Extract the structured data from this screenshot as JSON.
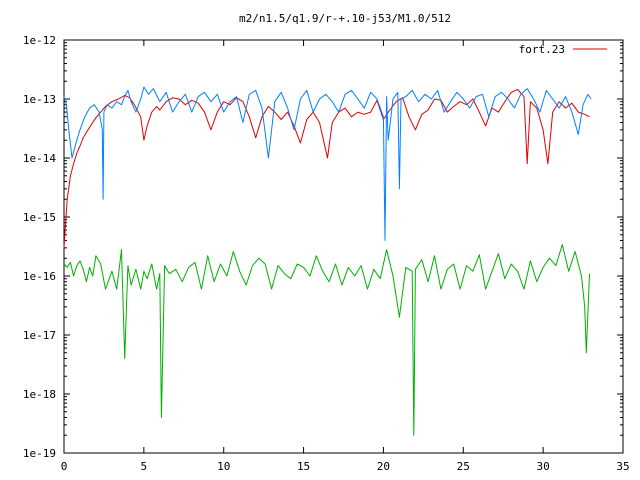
{
  "chart_data": {
    "type": "line",
    "title": "m2/n1.5/q1.9/r-+.10-j53/M1.0/512",
    "xlabel": "",
    "ylabel": "",
    "xlim": [
      0,
      35
    ],
    "ylim": [
      1e-19,
      1e-12
    ],
    "y_scale": "log",
    "grid": false,
    "legend_position": "top-right",
    "x_tick_labels": [
      "0",
      "5",
      "10",
      "15",
      "20",
      "25",
      "30",
      "35"
    ],
    "y_tick_labels": [
      "1e-19",
      "1e-18",
      "1e-17",
      "1e-16",
      "1e-15",
      "1e-14",
      "1e-13",
      "1e-12"
    ],
    "colors": {
      "red": "#e00000",
      "blue": "#0080ff",
      "green": "#00b000"
    },
    "series": [
      {
        "name": "fort.23",
        "color": "#e00000",
        "x": [
          0.0,
          0.2,
          0.4,
          0.6,
          0.8,
          1.0,
          1.2,
          1.5,
          1.8,
          2.0,
          2.3,
          2.6,
          3.0,
          3.4,
          3.8,
          4.1,
          4.4,
          4.8,
          5.0,
          5.2,
          5.5,
          5.8,
          6.0,
          6.4,
          6.8,
          7.2,
          7.6,
          8.0,
          8.4,
          8.8,
          9.2,
          9.6,
          10.0,
          10.4,
          10.8,
          11.2,
          11.6,
          12.0,
          12.4,
          12.8,
          13.2,
          13.6,
          14.0,
          14.4,
          14.8,
          15.2,
          15.6,
          16.0,
          16.5,
          16.8,
          17.2,
          17.6,
          18.0,
          18.4,
          18.8,
          19.2,
          19.6,
          20.0,
          20.4,
          20.8,
          21.2,
          21.6,
          22.0,
          22.4,
          22.8,
          23.2,
          23.6,
          24.0,
          24.4,
          24.8,
          25.2,
          25.6,
          26.0,
          26.4,
          26.8,
          27.2,
          27.6,
          28.0,
          28.4,
          28.8,
          29.0,
          29.2,
          29.6,
          30.0,
          30.3,
          30.6,
          31.0,
          31.4,
          31.8,
          32.2,
          32.6,
          32.9
        ],
        "y": [
          3e-16,
          2e-15,
          5e-15,
          8e-15,
          1.2e-14,
          1.6e-14,
          2.2e-14,
          3e-14,
          4e-14,
          4.8e-14,
          6e-14,
          7.5e-14,
          9e-14,
          1e-13,
          1.15e-13,
          1.05e-13,
          8e-14,
          5e-14,
          2e-14,
          3.5e-14,
          6e-14,
          7.5e-14,
          6.5e-14,
          9e-14,
          1.05e-13,
          1e-13,
          8e-14,
          9.5e-14,
          8.5e-14,
          6e-14,
          3e-14,
          6e-14,
          9e-14,
          8e-14,
          1.05e-13,
          9e-14,
          5e-14,
          2.2e-14,
          5e-14,
          7.5e-14,
          6e-14,
          4.5e-14,
          6e-14,
          3.5e-14,
          1.8e-14,
          4.5e-14,
          6e-14,
          4e-14,
          1e-14,
          4e-14,
          6e-14,
          7e-14,
          5e-14,
          6e-14,
          5.5e-14,
          6e-14,
          9.5e-14,
          4.5e-14,
          6.5e-14,
          9e-14,
          1.05e-13,
          5e-14,
          3e-14,
          5.5e-14,
          6.5e-14,
          1e-13,
          9.5e-14,
          6e-14,
          7.5e-14,
          9e-14,
          8e-14,
          1e-13,
          6e-14,
          3.5e-14,
          7e-14,
          6e-14,
          9e-14,
          1.3e-13,
          1.45e-13,
          1.1e-13,
          8e-15,
          9e-14,
          7e-14,
          3e-14,
          8e-15,
          6e-14,
          9e-14,
          7e-14,
          8.5e-14,
          6e-14,
          5.5e-14,
          5e-14
        ]
      },
      {
        "name": "",
        "color": "#0080ff",
        "x": [
          0.0,
          0.15,
          0.3,
          0.5,
          0.8,
          1.0,
          1.3,
          1.6,
          1.9,
          2.2,
          2.4,
          2.45,
          2.5,
          2.7,
          3.0,
          3.3,
          3.6,
          3.8,
          4.0,
          4.2,
          4.5,
          4.8,
          5.0,
          5.3,
          5.6,
          6.0,
          6.4,
          6.8,
          7.2,
          7.6,
          8.0,
          8.4,
          8.8,
          9.2,
          9.6,
          10.0,
          10.4,
          10.8,
          11.2,
          11.6,
          12.0,
          12.4,
          12.8,
          13.2,
          13.6,
          14.0,
          14.4,
          14.8,
          15.2,
          15.6,
          16.0,
          16.4,
          16.8,
          17.2,
          17.6,
          18.0,
          18.4,
          18.8,
          19.2,
          19.6,
          20.0,
          20.1,
          20.2,
          20.3,
          20.6,
          20.9,
          21.0,
          21.1,
          21.4,
          21.8,
          22.2,
          22.6,
          23.0,
          23.4,
          23.8,
          24.2,
          24.6,
          25.0,
          25.4,
          25.8,
          26.2,
          26.6,
          27.0,
          27.4,
          27.8,
          28.2,
          28.6,
          29.0,
          29.4,
          29.8,
          30.2,
          30.6,
          31.0,
          31.4,
          31.8,
          32.2,
          32.5,
          32.8,
          33.0
        ],
        "y": [
          1.1e-13,
          8e-14,
          3e-14,
          1e-14,
          2e-14,
          3e-14,
          5e-14,
          7e-14,
          8e-14,
          6e-14,
          3e-14,
          2e-15,
          6e-14,
          8e-14,
          7e-14,
          9e-14,
          8e-14,
          1.1e-13,
          1.4e-13,
          9e-14,
          6e-14,
          1e-13,
          1.6e-13,
          1.2e-13,
          1.5e-13,
          9e-14,
          1.3e-13,
          6e-14,
          9e-14,
          1.2e-13,
          6e-14,
          1.1e-13,
          1.3e-13,
          9e-14,
          1.2e-13,
          6e-14,
          9e-14,
          1.1e-13,
          4e-14,
          1.2e-13,
          1.4e-13,
          7e-14,
          1e-14,
          9e-14,
          1.3e-13,
          7e-14,
          3e-14,
          1e-13,
          1.4e-13,
          6e-14,
          1e-13,
          1.2e-13,
          9e-14,
          6e-14,
          1.2e-13,
          1.4e-13,
          1e-13,
          7e-14,
          1.3e-13,
          1e-13,
          5e-14,
          4e-16,
          1.1e-13,
          2e-14,
          1e-13,
          1.3e-13,
          3e-15,
          1e-13,
          1.1e-13,
          1.4e-13,
          9e-14,
          1.2e-13,
          1e-13,
          1.4e-13,
          6e-14,
          9e-14,
          1.3e-13,
          1e-13,
          7e-14,
          1.1e-13,
          1.2e-13,
          5e-14,
          1.1e-13,
          1.3e-13,
          1e-13,
          7e-14,
          1.2e-13,
          1.5e-13,
          1e-13,
          6e-14,
          1.4e-13,
          1e-13,
          7e-14,
          1.1e-13,
          6e-14,
          2.5e-14,
          8e-14,
          1.2e-13,
          1e-13
        ]
      },
      {
        "name": "",
        "color": "#00b000",
        "x": [
          0.0,
          0.2,
          0.4,
          0.6,
          0.8,
          1.0,
          1.2,
          1.4,
          1.6,
          1.8,
          2.0,
          2.3,
          2.6,
          3.0,
          3.3,
          3.6,
          3.8,
          4.0,
          4.2,
          4.5,
          4.8,
          5.0,
          5.2,
          5.5,
          5.8,
          6.0,
          6.1,
          6.3,
          6.6,
          7.0,
          7.4,
          7.8,
          8.2,
          8.6,
          9.0,
          9.4,
          9.8,
          10.2,
          10.6,
          11.0,
          11.4,
          11.8,
          12.2,
          12.6,
          13.0,
          13.4,
          13.8,
          14.2,
          14.6,
          15.0,
          15.4,
          15.8,
          16.2,
          16.6,
          17.0,
          17.4,
          17.8,
          18.2,
          18.6,
          19.0,
          19.4,
          19.8,
          20.2,
          20.6,
          21.0,
          21.4,
          21.8,
          21.9,
          22.0,
          22.4,
          22.8,
          23.2,
          23.6,
          24.0,
          24.4,
          24.8,
          25.2,
          25.6,
          26.0,
          26.4,
          26.8,
          27.2,
          27.6,
          28.0,
          28.4,
          28.8,
          29.2,
          29.6,
          30.0,
          30.4,
          30.8,
          31.2,
          31.6,
          32.0,
          32.4,
          32.6,
          32.7,
          32.9
        ],
        "y": [
          1.6e-16,
          1.4e-16,
          1.7e-16,
          1e-16,
          1.5e-16,
          1.8e-16,
          1.3e-16,
          8e-17,
          1.4e-16,
          1e-16,
          2.2e-16,
          1.6e-16,
          6e-17,
          1.2e-16,
          6e-17,
          2.8e-16,
          4e-18,
          1.5e-16,
          7e-17,
          1.3e-16,
          6e-17,
          1.2e-16,
          9e-17,
          1.6e-16,
          6e-17,
          1.1e-16,
          4e-19,
          1.5e-16,
          1.1e-16,
          1.3e-16,
          8e-17,
          1.4e-16,
          1.7e-16,
          6e-17,
          2.2e-16,
          8e-17,
          1.6e-16,
          1e-16,
          2.6e-16,
          1.2e-16,
          7e-17,
          1.5e-16,
          2e-16,
          1.6e-16,
          6e-17,
          1.5e-16,
          1.1e-16,
          9e-17,
          1.6e-16,
          1.4e-16,
          1e-16,
          2.2e-16,
          1.2e-16,
          8e-17,
          1.6e-16,
          7e-17,
          1.4e-16,
          1e-16,
          1.5e-16,
          6e-17,
          1.3e-16,
          9e-17,
          2.8e-16,
          1e-16,
          2e-17,
          1.4e-16,
          1.2e-16,
          2e-19,
          1.3e-16,
          1.9e-16,
          8e-17,
          2.2e-16,
          6e-17,
          1.3e-16,
          1.6e-16,
          6e-17,
          1.5e-16,
          1.2e-16,
          2.3e-16,
          6e-17,
          1.2e-16,
          2.4e-16,
          9e-17,
          1.6e-16,
          1.2e-16,
          6e-17,
          1.8e-16,
          8e-17,
          1.4e-16,
          2e-16,
          1.5e-16,
          3.4e-16,
          1.2e-16,
          2.6e-16,
          1e-16,
          3e-17,
          5e-18,
          1.1e-16
        ]
      }
    ]
  }
}
